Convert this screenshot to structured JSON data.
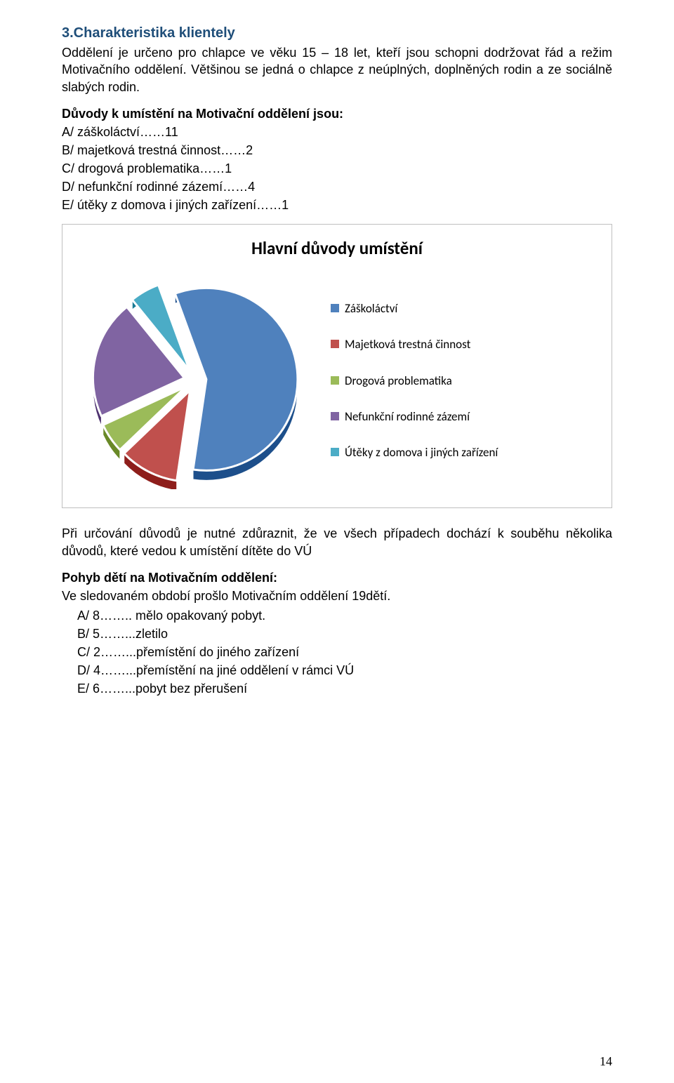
{
  "section_title": "3.Charakteristika klientely",
  "intro_paragraph": "Oddělení je určeno pro chlapce ve věku 15 – 18 let, kteří jsou schopni dodržovat řád a režim Motivačního oddělení. Většinou se jedná o chlapce z neúplných, doplněných rodin a ze sociálně slabých rodin.",
  "reasons_heading": "Důvody k umístění na Motivační oddělení jsou:",
  "reasons_items": [
    "A/ záškoláctví……11",
    "B/ majetková trestná činnost……2",
    "C/ drogová problematika……1",
    "D/ nefunkční rodinné zázemí……4",
    "E/ útěky z domova i jiných zařízení……1"
  ],
  "chart": {
    "type": "pie",
    "title": "Hlavní důvody umístění",
    "background_color": "#ffffff",
    "border_color": "#bfbfbf",
    "title_fontsize": 25,
    "label_fontsize": 17,
    "pie_radius": 130,
    "explode_gap": 16,
    "slice_outline": "#ffffff",
    "slice_outline_width": 3,
    "slices": [
      {
        "label": "Záškoláctví",
        "value": 11,
        "color": "#4f81bd"
      },
      {
        "label": "Majetková trestná činnost",
        "value": 2,
        "color": "#c0504d"
      },
      {
        "label": "Drogová problematika",
        "value": 1,
        "color": "#9bbb59"
      },
      {
        "label": "Nefunkční rodinné zázemí",
        "value": 4,
        "color": "#8064a2"
      },
      {
        "label": "Útěky z domova i jiných zařízení",
        "value": 1,
        "color": "#4bacc6"
      }
    ]
  },
  "note_text": "Při určování důvodů je nutné zdůraznit, že ve všech případech dochází k souběhu několika důvodů, které vedou k umístění dítěte do VÚ",
  "movement_heading": "Pohyb dětí na Motivačním oddělení:",
  "movement_line": "Ve sledovaném období prošlo Motivačním oddělení 19dětí.",
  "movement_items": [
    "A/ 8…….. mělo opakovaný pobyt.",
    "B/ 5……...zletilo",
    "C/ 2……...přemístění do jiného zařízení",
    "D/ 4……...přemístění na jiné oddělení v rámci VÚ",
    "E/ 6……...pobyt bez přerušení"
  ],
  "page_number": "14"
}
